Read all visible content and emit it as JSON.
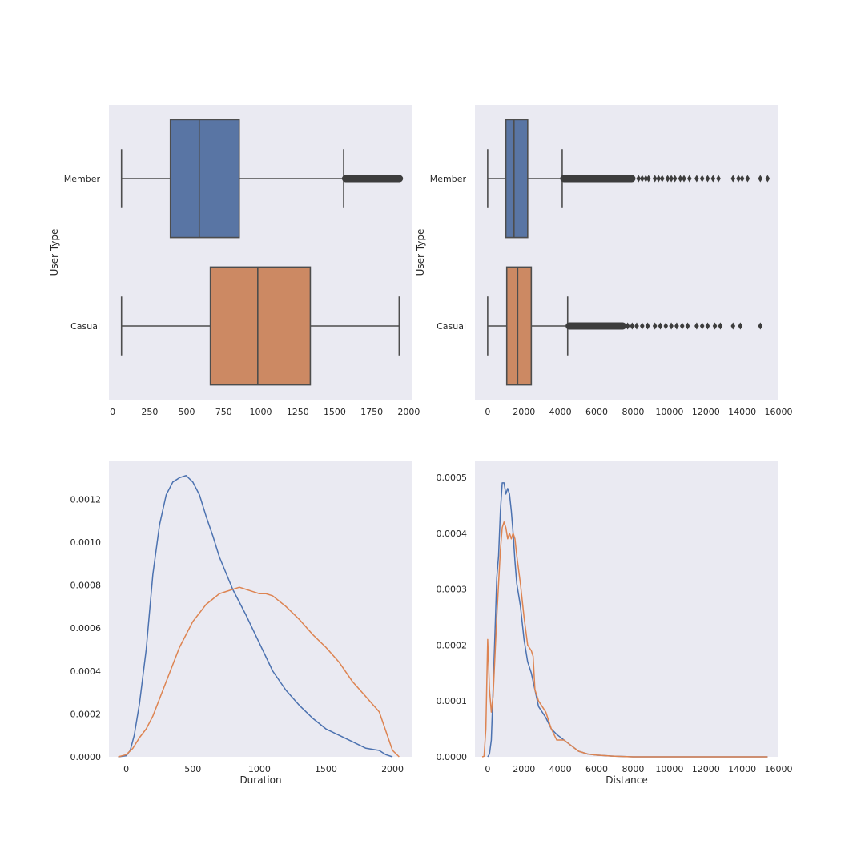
{
  "chart_data": [
    {
      "type": "box",
      "orientation": "horizontal",
      "ylabel": "User Type",
      "xlabel": "",
      "xlim": [
        -25,
        2025
      ],
      "xticks": [
        0,
        250,
        500,
        750,
        1000,
        1250,
        1500,
        1750,
        2000
      ],
      "grid": false,
      "series": [
        {
          "name": "Member",
          "color": "#5975a4",
          "whisker_low": 60,
          "q1": 390,
          "median": 585,
          "q3": 855,
          "whisker_high": 1560,
          "outlier_range": [
            1565,
            1945
          ],
          "outliers": []
        },
        {
          "name": "Casual",
          "color": "#cc8963",
          "whisker_low": 60,
          "q1": 660,
          "median": 980,
          "q3": 1335,
          "whisker_high": 1935,
          "outlier_range": null,
          "outliers": []
        }
      ]
    },
    {
      "type": "box",
      "orientation": "horizontal",
      "ylabel": "User Type",
      "xlabel": "",
      "xlim": [
        -700,
        16000
      ],
      "xticks": [
        0,
        2000,
        4000,
        6000,
        8000,
        10000,
        12000,
        14000,
        16000
      ],
      "grid": false,
      "series": [
        {
          "name": "Member",
          "color": "#5975a4",
          "whisker_low": 0,
          "q1": 1000,
          "median": 1450,
          "q3": 2200,
          "whisker_high": 4100,
          "outlier_range": [
            4120,
            8000
          ],
          "outliers": [
            8300,
            8500,
            8700,
            8850,
            9200,
            9400,
            9600,
            9900,
            10100,
            10300,
            10600,
            10800,
            11100,
            11500,
            11800,
            12100,
            12400,
            12700,
            13500,
            13800,
            14000,
            14300,
            15000,
            15400
          ]
        },
        {
          "name": "Casual",
          "color": "#cc8963",
          "whisker_low": 0,
          "q1": 1050,
          "median": 1650,
          "q3": 2400,
          "whisker_high": 4400,
          "outlier_range": [
            4420,
            7500
          ],
          "outliers": [
            7700,
            7950,
            8200,
            8500,
            8800,
            9200,
            9500,
            9800,
            10100,
            10400,
            10700,
            11000,
            11500,
            11800,
            12100,
            12500,
            12800,
            13500,
            13900,
            15000
          ]
        }
      ]
    },
    {
      "type": "line",
      "xlabel": "Duration",
      "ylabel": "",
      "xlim": [
        -130,
        2150
      ],
      "ylim": [
        0,
        0.00138
      ],
      "xticks": [
        0,
        500,
        1000,
        1500,
        2000
      ],
      "yticks": [
        0.0,
        0.0002,
        0.0004,
        0.0006,
        0.0008,
        0.001,
        0.0012
      ],
      "ytick_labels": [
        "0.0000",
        "0.0002",
        "0.0004",
        "0.0006",
        "0.0008",
        "0.0010",
        "0.0012"
      ],
      "grid": false,
      "series": [
        {
          "name": "",
          "color": "#4c72b0",
          "x": [
            -60,
            0,
            30,
            60,
            100,
            150,
            200,
            250,
            300,
            350,
            400,
            450,
            500,
            550,
            600,
            650,
            700,
            800,
            900,
            1000,
            1100,
            1200,
            1300,
            1400,
            1500,
            1600,
            1700,
            1800,
            1900,
            1950,
            2000
          ],
          "y": [
            0.0,
            5e-06,
            3e-05,
            0.0001,
            0.00025,
            0.0005,
            0.00085,
            0.00108,
            0.00122,
            0.00128,
            0.0013,
            0.00131,
            0.00128,
            0.00122,
            0.00112,
            0.00103,
            0.00093,
            0.00078,
            0.00066,
            0.00053,
            0.0004,
            0.00031,
            0.00024,
            0.00018,
            0.00013,
            0.0001,
            7e-05,
            4e-05,
            3e-05,
            1e-05,
            0.0
          ]
        },
        {
          "name": "",
          "color": "#dd8452",
          "x": [
            -60,
            0,
            50,
            100,
            150,
            200,
            300,
            400,
            500,
            600,
            700,
            800,
            850,
            900,
            950,
            1000,
            1050,
            1100,
            1200,
            1300,
            1400,
            1500,
            1600,
            1700,
            1800,
            1900,
            1950,
            2000,
            2050
          ],
          "y": [
            0.0,
            1e-05,
            4e-05,
            9e-05,
            0.00013,
            0.00019,
            0.00035,
            0.00051,
            0.00063,
            0.00071,
            0.00076,
            0.00078,
            0.00079,
            0.00078,
            0.00077,
            0.00076,
            0.00076,
            0.00075,
            0.0007,
            0.00064,
            0.00057,
            0.00051,
            0.00044,
            0.00035,
            0.00028,
            0.00021,
            0.00012,
            3e-05,
            0.0
          ]
        }
      ]
    },
    {
      "type": "line",
      "xlabel": "Distance",
      "ylabel": "",
      "xlim": [
        -700,
        16000
      ],
      "ylim": [
        0,
        0.00053
      ],
      "xticks": [
        0,
        2000,
        4000,
        6000,
        8000,
        10000,
        12000,
        14000,
        16000
      ],
      "yticks": [
        0.0,
        0.0001,
        0.0002,
        0.0003,
        0.0004,
        0.0005
      ],
      "ytick_labels": [
        "0.0000",
        "0.0001",
        "0.0002",
        "0.0003",
        "0.0004",
        "0.0005"
      ],
      "grid": false,
      "series": [
        {
          "name": "",
          "color": "#4c72b0",
          "x": [
            0,
            100,
            200,
            300,
            400,
            500,
            600,
            700,
            800,
            900,
            1000,
            1100,
            1200,
            1300,
            1400,
            1500,
            1600,
            1800,
            2000,
            2200,
            2400,
            2600,
            2800,
            3000,
            3200,
            3500,
            3800,
            4200,
            4600,
            5000,
            5500,
            6000,
            7000,
            8000,
            10000,
            12000,
            14000,
            15400
          ],
          "y": [
            0.0,
            5e-06,
            3e-05,
            0.00012,
            0.00022,
            0.00032,
            0.00036,
            0.00044,
            0.00049,
            0.00049,
            0.00047,
            0.00048,
            0.00047,
            0.00044,
            0.0004,
            0.00035,
            0.00031,
            0.00027,
            0.00021,
            0.00017,
            0.00015,
            0.00012,
            9e-05,
            8e-05,
            7e-05,
            5e-05,
            4e-05,
            3e-05,
            2e-05,
            1e-05,
            5e-06,
            3e-06,
            1e-06,
            0.0,
            0.0,
            0.0,
            0.0,
            0.0
          ]
        },
        {
          "name": "",
          "color": "#dd8452",
          "x": [
            -300,
            -200,
            -100,
            0,
            100,
            200,
            300,
            400,
            500,
            600,
            700,
            800,
            900,
            1000,
            1100,
            1200,
            1300,
            1400,
            1500,
            1600,
            1800,
            2000,
            2200,
            2400,
            2500,
            2600,
            2700,
            2800,
            3000,
            3200,
            3500,
            3800,
            4200,
            4600,
            5000,
            5500,
            6000,
            7000,
            8000,
            10000,
            12000,
            14000,
            15400
          ],
          "y": [
            0.0,
            1e-06,
            5e-05,
            0.00021,
            0.00012,
            8e-05,
            0.00011,
            0.00018,
            0.00025,
            0.00031,
            0.00037,
            0.00041,
            0.00042,
            0.00041,
            0.00039,
            0.0004,
            0.00039,
            0.0004,
            0.00039,
            0.00036,
            0.00031,
            0.00025,
            0.0002,
            0.00019,
            0.00018,
            0.00012,
            0.00011,
            0.0001,
            9e-05,
            8e-05,
            5e-05,
            3e-05,
            3e-05,
            2e-05,
            1e-05,
            5e-06,
            3e-06,
            1e-06,
            0.0,
            0.0,
            0.0,
            0.0,
            0.0
          ]
        }
      ]
    }
  ]
}
